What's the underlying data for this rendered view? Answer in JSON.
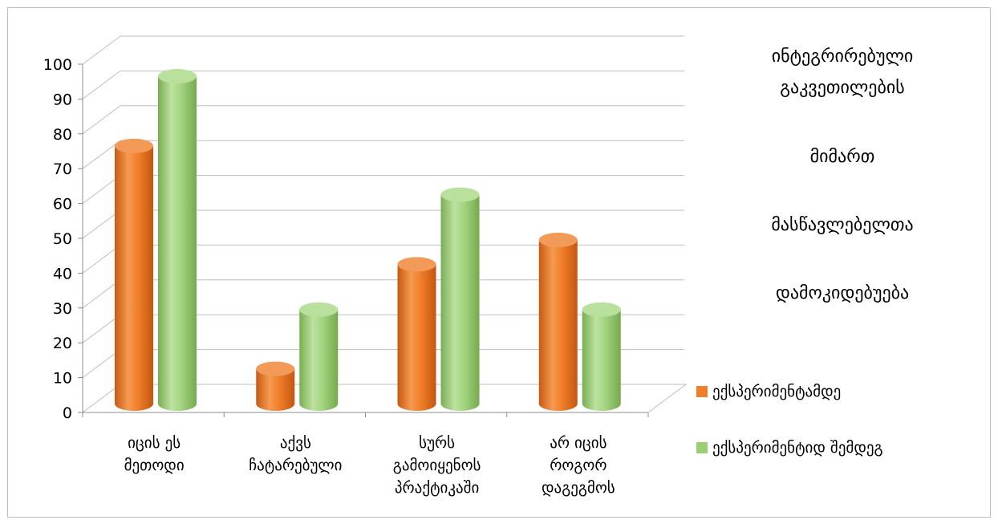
{
  "chart_data": {
    "type": "bar",
    "style": "3d-cylinder",
    "categories": [
      [
        "იცის ეს",
        "მეთოდი"
      ],
      [
        "აქვს",
        "ჩატარებული"
      ],
      [
        "სურს",
        "გამოიყენოს",
        "პრაქტიკაში"
      ],
      [
        "არ იცის",
        "როგორ",
        "დაგეგმოს"
      ]
    ],
    "series": [
      {
        "name": "ექსპერიმენტამდე",
        "color": "#f07f2a",
        "values": [
          74,
          10,
          40,
          47
        ]
      },
      {
        "name": "ექსპერიმენტიდ შემდეგ",
        "color": "#9cce74",
        "values": [
          94,
          27,
          60,
          27
        ]
      }
    ],
    "title_lines": [
      "ინტეგრირებული",
      "გაკვეთილების",
      "მიმართ",
      "მასწავლებელთა",
      "დამოკიდებუება"
    ],
    "ylim": [
      0,
      100
    ],
    "yticks": [
      "0",
      "10",
      "20",
      "30",
      "40",
      "50",
      "60",
      "70",
      "80",
      "90",
      "100"
    ],
    "grid": true,
    "legend_position": "right"
  }
}
